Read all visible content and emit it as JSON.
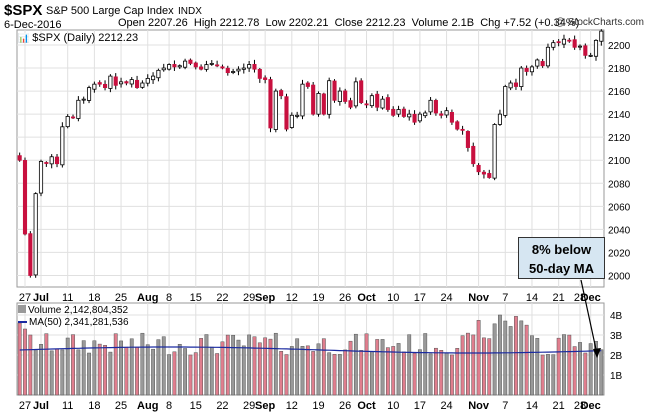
{
  "header": {
    "symbol": "$SPX",
    "name": "S&P 500 Large Cap Index",
    "exchange": "INDX",
    "date": "6-Dec-2016",
    "open_label": "Open",
    "open": "2207.26",
    "high_label": "High",
    "high": "2212.78",
    "low_label": "Low",
    "low": "2202.21",
    "close_label": "Close",
    "close": "2212.23",
    "volume_label": "Volume",
    "volume": "2.1B",
    "chg_label": "Chg",
    "chg": "+7.52 (+0.34%)",
    "credit": "@ StockCharts.com"
  },
  "legend": {
    "price": "$SPX (Daily) 2212.23",
    "volume": "Volume 2,142,804,352",
    "ma": "MA(50) 2,341,281,536"
  },
  "annotation": {
    "line1": "8% below",
    "line2": "50-day MA"
  },
  "colors": {
    "up": "#ffffff",
    "down": "#c8103f",
    "vol_up": "#999999",
    "vol_down": "#e07e8e",
    "ma": "#1a2aa0",
    "grid": "#e0e0e0",
    "callout_bg": "#d6e6f2"
  },
  "chart_data": {
    "type": "candlestick",
    "title": "$SPX (Daily)",
    "y_ticks": [
      2000,
      2020,
      2040,
      2060,
      2080,
      2100,
      2120,
      2140,
      2160,
      2180,
      2200
    ],
    "ylim": [
      1990,
      2213
    ],
    "volume_ticks": [
      "1B",
      "2B",
      "3B",
      "4B"
    ],
    "volume_ylim": [
      0,
      4.6
    ],
    "x_tick_labels": [
      {
        "i": 1,
        "label": "27",
        "bold": false
      },
      {
        "i": 4,
        "label": "Jul",
        "bold": true
      },
      {
        "i": 9,
        "label": "11",
        "bold": false
      },
      {
        "i": 14,
        "label": "18",
        "bold": false
      },
      {
        "i": 19,
        "label": "25",
        "bold": false
      },
      {
        "i": 24,
        "label": "Aug",
        "bold": true
      },
      {
        "i": 28,
        "label": "8",
        "bold": false
      },
      {
        "i": 33,
        "label": "15",
        "bold": false
      },
      {
        "i": 38,
        "label": "22",
        "bold": false
      },
      {
        "i": 43,
        "label": "29",
        "bold": false
      },
      {
        "i": 46,
        "label": "Sep",
        "bold": true
      },
      {
        "i": 51,
        "label": "12",
        "bold": false
      },
      {
        "i": 56,
        "label": "19",
        "bold": false
      },
      {
        "i": 61,
        "label": "26",
        "bold": false
      },
      {
        "i": 65,
        "label": "Oct",
        "bold": true
      },
      {
        "i": 70,
        "label": "10",
        "bold": false
      },
      {
        "i": 75,
        "label": "17",
        "bold": false
      },
      {
        "i": 80,
        "label": "24",
        "bold": false
      },
      {
        "i": 86,
        "label": "Nov",
        "bold": true
      },
      {
        "i": 91,
        "label": "7",
        "bold": false
      },
      {
        "i": 96,
        "label": "14",
        "bold": false
      },
      {
        "i": 101,
        "label": "21",
        "bold": false
      },
      {
        "i": 105,
        "label": "28",
        "bold": false
      },
      {
        "i": 107,
        "label": "Dec",
        "bold": true
      }
    ],
    "closes": [
      2100,
      2036,
      2000,
      2071,
      2099,
      2098,
      2103,
      2097,
      2129,
      2138,
      2137,
      2152,
      2153,
      2163,
      2166,
      2166,
      2163,
      2173,
      2165,
      2168,
      2167,
      2170,
      2163,
      2167,
      2171,
      2173,
      2178,
      2180,
      2183,
      2181,
      2182,
      2186,
      2184,
      2181,
      2179,
      2183,
      2184,
      2182,
      2180,
      2176,
      2177,
      2179,
      2180,
      2183,
      2179,
      2171,
      2170,
      2128,
      2160,
      2156,
      2127,
      2139,
      2139,
      2166,
      2164,
      2140,
      2158,
      2140,
      2169,
      2152,
      2160,
      2151,
      2146,
      2168,
      2150,
      2148,
      2156,
      2146,
      2153,
      2144,
      2139,
      2144,
      2138,
      2140,
      2133,
      2140,
      2141,
      2152,
      2141,
      2139,
      2143,
      2133,
      2127,
      2126,
      2111,
      2097,
      2090,
      2088,
      2085,
      2131,
      2140,
      2164,
      2167,
      2164,
      2180,
      2177,
      2181,
      2187,
      2182,
      2198,
      2202,
      2202,
      2205,
      2204,
      2198,
      2199,
      2191,
      2191,
      2204,
      2212
    ]
  }
}
